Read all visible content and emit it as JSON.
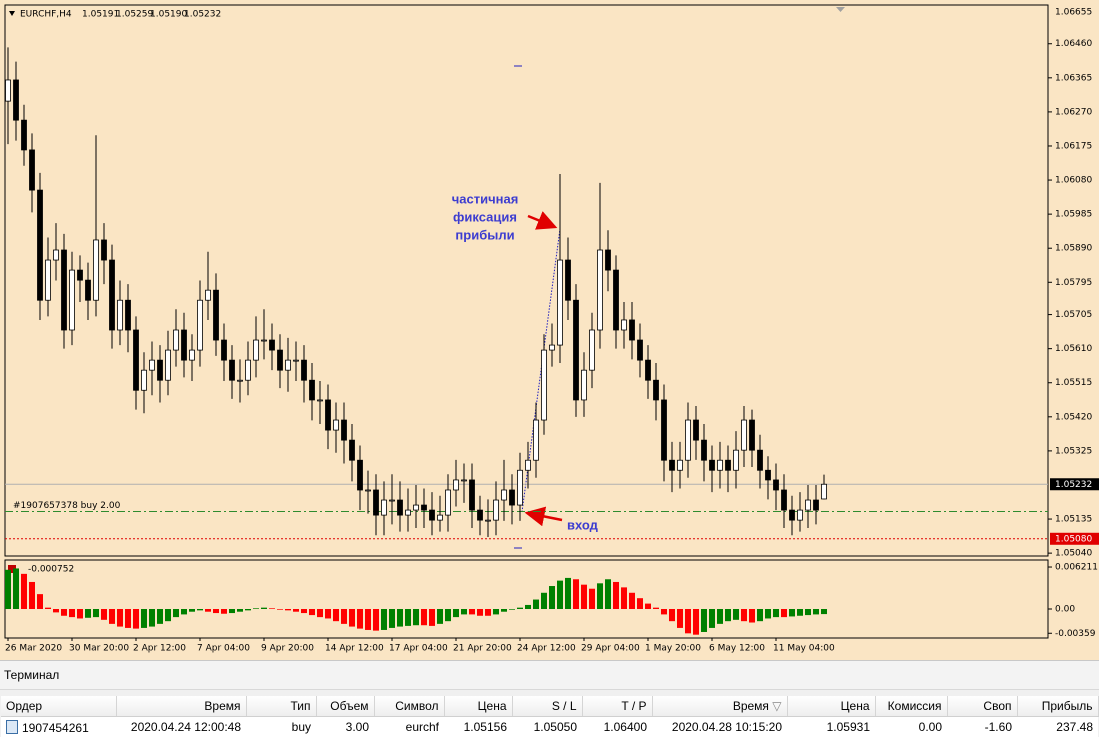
{
  "chart_data": {
    "type": "candlestick",
    "title": "EURCHF,H4",
    "header_prices": [
      "1.05191",
      "1.05259",
      "1.05190",
      "1.05232"
    ],
    "colors": {
      "background": "#fae5c4",
      "up": "#ffffff",
      "down": "#000000",
      "wick": "#000000"
    },
    "categories": [
      "26 Mar 2020",
      null,
      null,
      null,
      null,
      null,
      null,
      null,
      "30 Mar 20:00",
      null,
      null,
      null,
      null,
      null,
      null,
      null,
      "2 Apr 12:00",
      null,
      null,
      null,
      null,
      null,
      null,
      null,
      "7 Apr 04:00",
      null,
      null,
      null,
      null,
      null,
      null,
      null,
      "9 Apr 20:00",
      null,
      null,
      null,
      null,
      null,
      null,
      null,
      "14 Apr 12:00",
      null,
      null,
      null,
      null,
      null,
      null,
      null,
      "17 Apr 04:00",
      null,
      null,
      null,
      null,
      null,
      null,
      null,
      "21 Apr 20:00",
      null,
      null,
      null,
      null,
      null,
      null,
      null,
      "24 Apr 12:00",
      null,
      null,
      null,
      null,
      null,
      null,
      null,
      "29 Apr 04:00",
      null,
      null,
      null,
      null,
      null,
      null,
      null,
      "1 May 20:00",
      null,
      null,
      null,
      null,
      null,
      null,
      null,
      "6 May 12:00",
      null,
      null,
      null,
      null,
      null,
      null,
      null,
      "11 May 04:00",
      null,
      null,
      null,
      null,
      null,
      null
    ],
    "open": [
      1.063,
      1.06359,
      1.06247,
      1.06164,
      1.06052,
      1.05745,
      1.05857,
      1.05885,
      1.05662,
      1.05829,
      1.05801,
      1.05745,
      1.05913,
      1.05857,
      1.05662,
      1.05745,
      1.05662,
      1.05494,
      1.0555,
      1.05578,
      1.05522,
      1.05606,
      1.05662,
      1.05578,
      1.05606,
      1.05745,
      1.05773,
      1.05634,
      1.05578,
      1.05522,
      1.05522,
      1.05578,
      1.05634,
      1.05634,
      1.05606,
      1.0555,
      1.05578,
      1.05578,
      1.05522,
      1.05467,
      1.05467,
      1.05383,
      1.05411,
      1.05355,
      1.05299,
      1.05216,
      1.05216,
      1.05146,
      1.05188,
      1.05188,
      1.05146,
      1.0516,
      1.05174,
      1.0516,
      1.05132,
      1.05146,
      1.05216,
      1.05244,
      1.05244,
      1.0516,
      1.05132,
      1.05132,
      1.05188,
      1.05216,
      1.05174,
      1.05271,
      1.05299,
      1.05411,
      1.05606,
      1.0562,
      1.05857,
      1.05745,
      1.05467,
      1.0555,
      1.05662,
      1.05885,
      1.05829,
      1.05662,
      1.0569,
      1.05634,
      1.05578,
      1.05522,
      1.05467,
      1.05299,
      1.05271,
      1.05299,
      1.05411,
      1.05355,
      1.05299,
      1.05271,
      1.05299,
      1.05271,
      1.05327,
      1.05411,
      1.05327,
      1.05271,
      1.05244,
      1.05216,
      1.0516,
      1.05132,
      1.0516,
      1.05188,
      1.05191
    ],
    "high": [
      1.0645,
      1.0641,
      1.0629,
      1.0621,
      1.061,
      1.0592,
      1.0596,
      1.0593,
      1.0588,
      1.0587,
      1.0585,
      1.06205,
      1.0596,
      1.059,
      1.058,
      1.0579,
      1.057,
      1.056,
      1.0563,
      1.0562,
      1.0566,
      1.0572,
      1.0571,
      1.0565,
      1.058,
      1.0588,
      1.0582,
      1.0568,
      1.0562,
      1.0558,
      1.0563,
      1.057,
      1.0572,
      1.0568,
      1.0565,
      1.0564,
      1.0563,
      1.0562,
      1.0557,
      1.0552,
      1.0551,
      1.0546,
      1.0546,
      1.054,
      1.0534,
      1.0527,
      1.0526,
      1.0524,
      1.0526,
      1.0524,
      1.0522,
      1.0523,
      1.0522,
      1.0521,
      1.052,
      1.0526,
      1.053,
      1.0529,
      1.0529,
      1.052,
      1.0519,
      1.0524,
      1.053,
      1.0526,
      1.0532,
      1.0535,
      1.0546,
      1.0565,
      1.0568,
      1.06097,
      1.0592,
      1.0579,
      1.056,
      1.0571,
      1.06072,
      1.0594,
      1.0587,
      1.0574,
      1.0574,
      1.0568,
      1.0562,
      1.0557,
      1.0551,
      1.0535,
      1.0535,
      1.0546,
      1.0545,
      1.054,
      1.0534,
      1.0535,
      1.0534,
      1.0538,
      1.0545,
      1.0544,
      1.0537,
      1.0531,
      1.0529,
      1.0526,
      1.052,
      1.0521,
      1.0523,
      1.0523,
      1.05259
    ],
    "low": [
      1.0618,
      1.0619,
      1.0612,
      1.0599,
      1.0569,
      1.057,
      1.058,
      1.0561,
      1.0562,
      1.0574,
      1.0569,
      1.057,
      1.0579,
      1.0561,
      1.0562,
      1.056,
      1.0544,
      1.0543,
      1.0548,
      1.0546,
      1.0548,
      1.0556,
      1.0553,
      1.0552,
      1.0556,
      1.0569,
      1.0559,
      1.0552,
      1.0547,
      1.0546,
      1.0548,
      1.0553,
      1.0558,
      1.0555,
      1.055,
      1.0549,
      1.0552,
      1.0546,
      1.0541,
      1.054,
      1.0533,
      1.0532,
      1.0529,
      1.0524,
      1.0516,
      1.0515,
      1.0509,
      1.0509,
      1.0512,
      1.051,
      1.051,
      1.0511,
      1.0511,
      1.0509,
      1.051,
      1.051,
      1.0517,
      1.0518,
      1.0511,
      1.0509,
      1.05085,
      1.0509,
      1.0513,
      1.0512,
      1.0513,
      1.0522,
      1.0525,
      1.0537,
      1.0556,
      1.0557,
      1.0569,
      1.0542,
      1.0542,
      1.055,
      1.0561,
      1.0577,
      1.0561,
      1.0561,
      1.0558,
      1.0553,
      1.0547,
      1.0541,
      1.0524,
      1.0521,
      1.0522,
      1.0525,
      1.053,
      1.0524,
      1.0521,
      1.0522,
      1.0521,
      1.0522,
      1.0528,
      1.0528,
      1.0522,
      1.0519,
      1.0516,
      1.0511,
      1.0509,
      1.051,
      1.0511,
      1.0512,
      1.0519
    ],
    "close": [
      1.06359,
      1.06247,
      1.06164,
      1.06052,
      1.05745,
      1.05857,
      1.05885,
      1.05662,
      1.05829,
      1.05801,
      1.05745,
      1.05913,
      1.05857,
      1.05662,
      1.05745,
      1.05662,
      1.05494,
      1.0555,
      1.05578,
      1.05522,
      1.05606,
      1.05662,
      1.05578,
      1.05606,
      1.05745,
      1.05773,
      1.05634,
      1.05578,
      1.05522,
      1.05522,
      1.05578,
      1.05634,
      1.05634,
      1.05606,
      1.0555,
      1.05578,
      1.05578,
      1.05522,
      1.05467,
      1.05467,
      1.05383,
      1.05411,
      1.05355,
      1.05299,
      1.05216,
      1.05216,
      1.05146,
      1.05188,
      1.05188,
      1.05146,
      1.0516,
      1.05174,
      1.0516,
      1.05132,
      1.05146,
      1.05216,
      1.05244,
      1.05244,
      1.0516,
      1.05132,
      1.05132,
      1.05188,
      1.05216,
      1.05174,
      1.05271,
      1.05299,
      1.05411,
      1.05606,
      1.0562,
      1.05857,
      1.05745,
      1.05467,
      1.0555,
      1.05662,
      1.05885,
      1.05829,
      1.05662,
      1.0569,
      1.05634,
      1.05578,
      1.05522,
      1.05467,
      1.05299,
      1.05271,
      1.05299,
      1.05411,
      1.05355,
      1.05299,
      1.05271,
      1.05299,
      1.05271,
      1.05327,
      1.05411,
      1.05327,
      1.05271,
      1.05244,
      1.05216,
      1.0516,
      1.05132,
      1.0516,
      1.05188,
      1.0516,
      1.05232
    ],
    "ylim": [
      1.05032,
      1.06568
    ],
    "price_max_label": "1.06655",
    "yticks": [
      {
        "value": 1.0646,
        "label": "1.06460"
      },
      1.06365,
      {
        "value": 1.0627,
        "label": "1.06270"
      },
      1.06175,
      {
        "value": 1.0608,
        "label": "1.06080"
      },
      1.05985,
      {
        "value": 1.0589,
        "label": "1.05890"
      },
      1.05795,
      1.05705,
      {
        "value": 1.0561,
        "label": "1.05610"
      },
      1.05515,
      {
        "value": 1.0542,
        "label": "1.05420"
      },
      1.05325,
      1.05135,
      {
        "value": 1.0504,
        "label": "1.05040"
      }
    ],
    "grid": false,
    "current_price": 1.05232,
    "stop_level": {
      "value": 1.0508,
      "label": "1.05080"
    },
    "order_line": {
      "price": 1.05156,
      "text": "#1907657378 buy 2.00"
    },
    "annotations": {
      "partial_close": [
        "частичная",
        "фиксация",
        "прибыли"
      ],
      "entry": "вход"
    },
    "indicator": {
      "type": "histogram",
      "label": "-0.000752",
      "up_color": "#008000",
      "down_color": "#ff0000",
      "values": [
        0.0058,
        0.006,
        0.0052,
        0.004,
        0.0022,
        0.0002,
        -0.0005,
        -0.001,
        -0.0012,
        -0.0014,
        -0.0013,
        -0.0012,
        -0.0016,
        -0.0022,
        -0.0026,
        -0.0028,
        -0.0029,
        -0.0028,
        -0.0026,
        -0.0022,
        -0.0018,
        -0.0012,
        -0.0008,
        -0.0004,
        -0.0002,
        -0.0004,
        -0.0006,
        -0.0007,
        -0.0006,
        -0.0004,
        -0.0002,
        0.0001,
        0.0002,
        0.0001,
        -0.0001,
        -0.0002,
        -0.0004,
        -0.0006,
        -0.0009,
        -0.0012,
        -0.0014,
        -0.0018,
        -0.0022,
        -0.0026,
        -0.0029,
        -0.0031,
        -0.0032,
        -0.0031,
        -0.0028,
        -0.0026,
        -0.0025,
        -0.0024,
        -0.0024,
        -0.0025,
        -0.0022,
        -0.0018,
        -0.0012,
        -0.0008,
        -0.0008,
        -0.001,
        -0.001,
        -0.0008,
        -0.0004,
        -0.0001,
        0.0002,
        0.0006,
        0.0014,
        0.0024,
        0.0034,
        0.0042,
        0.0046,
        0.0044,
        0.0036,
        0.003,
        0.0038,
        0.0044,
        0.004,
        0.0032,
        0.0024,
        0.0016,
        0.0008,
        0.0002,
        -0.0008,
        -0.0018,
        -0.0028,
        -0.0036,
        -0.0038,
        -0.0034,
        -0.0028,
        -0.0022,
        -0.0018,
        -0.0016,
        -0.0018,
        -0.002,
        -0.0018,
        -0.0014,
        -0.0012,
        -0.0012,
        -0.0011,
        -0.001,
        -0.0009,
        -0.0008,
        -0.000752
      ],
      "ylim": [
        -0.00429,
        0.00725
      ],
      "yticks": [
        0.006211,
        {
          "value": 0,
          "label": "0.00"
        },
        -0.00359
      ]
    }
  },
  "terminal": {
    "title": "Терминал",
    "columns": [
      "Ордер",
      "Время",
      "Тип",
      "Объем",
      "Символ",
      "Цена",
      "S / L",
      "T / P",
      "Время",
      "Цена",
      "Комиссия",
      "Своп",
      "Прибыль"
    ],
    "rows": [
      [
        "1907454261",
        "2020.04.24 12:00:48",
        "buy",
        "3.00",
        "eurchf",
        "1.05156",
        "1.05050",
        "1.06400",
        "2020.04.28 10:15:20",
        "1.05931",
        "0.00",
        "-1.60",
        "237.48"
      ]
    ]
  }
}
